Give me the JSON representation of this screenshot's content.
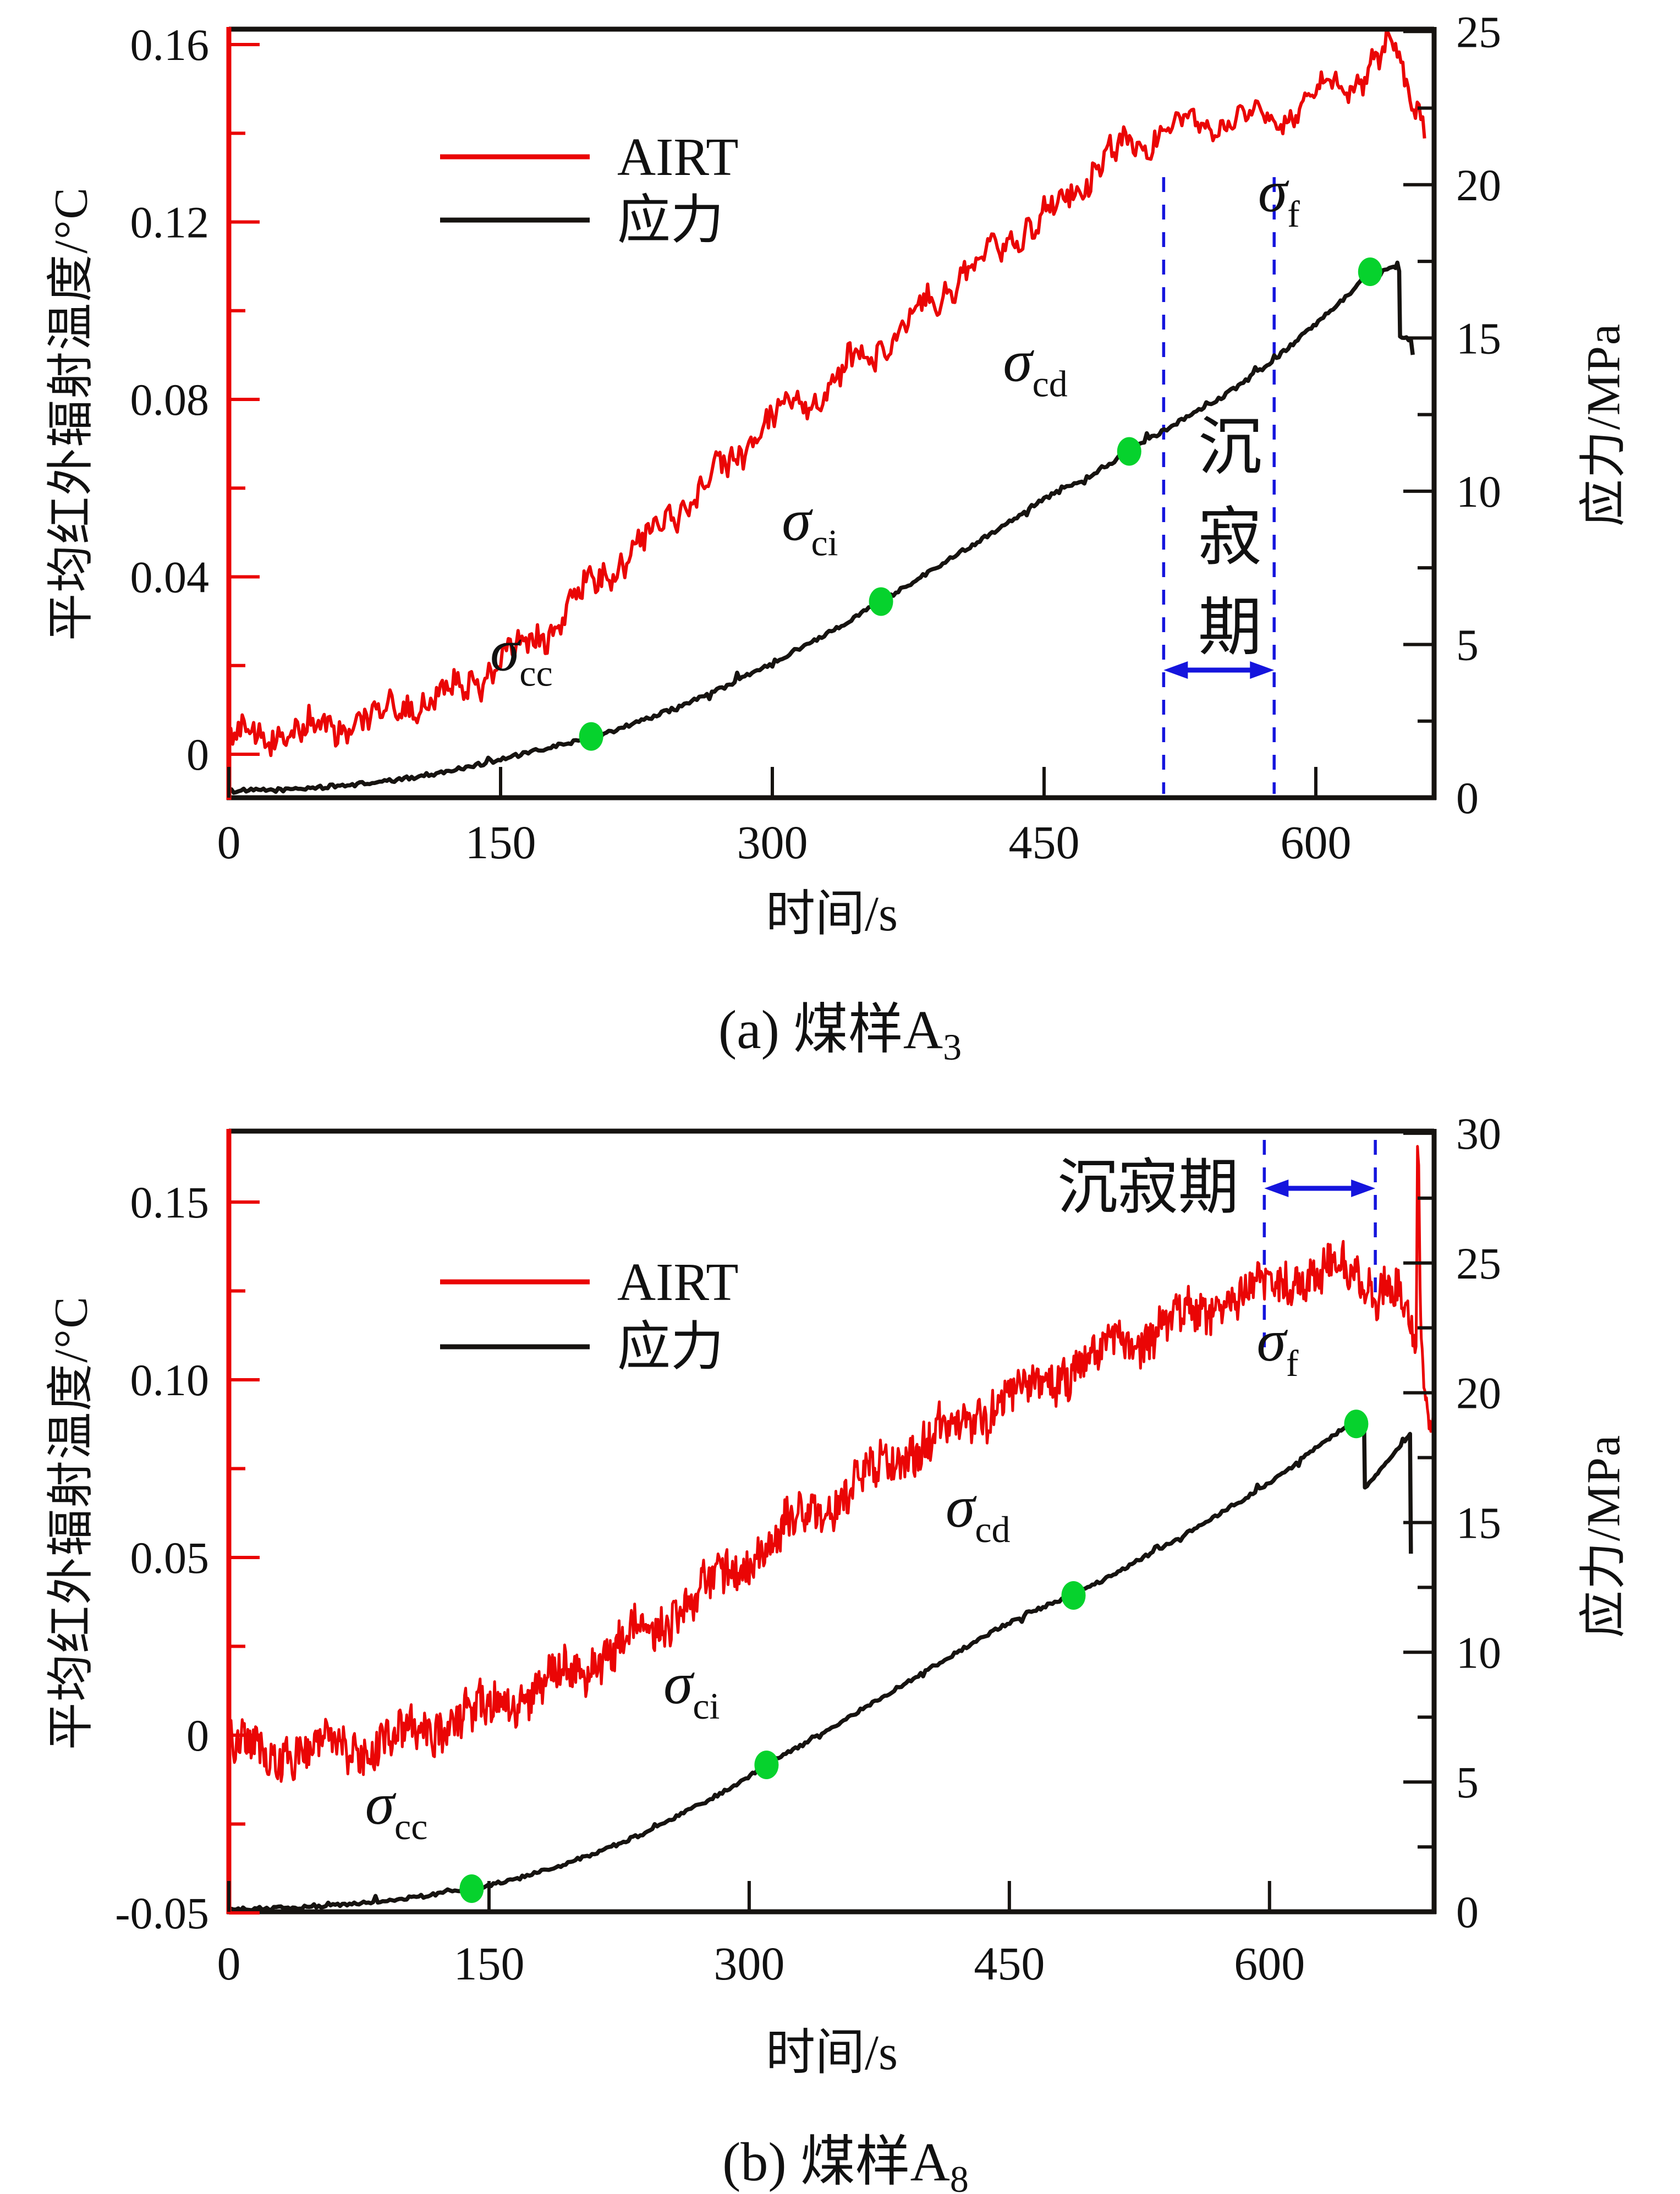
{
  "figure": {
    "background": "#ffffff"
  },
  "colors": {
    "airt": "#ea0505",
    "stress": "#161310",
    "marker_green": "#06d22d",
    "quiet_blue": "#1515dd",
    "text": "#111111",
    "left_axis": "#ea0505"
  },
  "legend": {
    "airt_label": "AIRT",
    "stress_label": "应力"
  },
  "quiet_label": "沉寂期",
  "captions": {
    "a": {
      "text": "(a) 煤样A",
      "sub": "3"
    },
    "b": {
      "text": "(b) 煤样A",
      "sub": "8"
    }
  },
  "chart_data": [
    {
      "id": "a",
      "type": "line",
      "title": "(a) 煤样A3",
      "x": {
        "label": "时间/s",
        "ticks": [
          0,
          150,
          300,
          450,
          600
        ],
        "min": 0,
        "max": 665
      },
      "y_left": {
        "label": "平均红外辐射温度/°C",
        "ticks": [
          0,
          0.04,
          0.08,
          0.12,
          0.16
        ],
        "minor_ticks": [
          0.02,
          0.06,
          0.1,
          0.14
        ],
        "min": -0.01,
        "max": 0.163
      },
      "y_right": {
        "label": "应力/MPa",
        "ticks": [
          0,
          5,
          10,
          15,
          20,
          25
        ],
        "minor_ticks": [
          2.5,
          7.5,
          12.5,
          17.5,
          22.5
        ],
        "min": 0,
        "max": 25
      },
      "grid": false,
      "legend_position": "upper-left-inside",
      "series": [
        {
          "name": "AIRT",
          "axis": "left",
          "color": "#ea0505",
          "points": [
            [
              0,
              0.004
            ],
            [
              20,
              0.0045
            ],
            [
              40,
              0.005
            ],
            [
              60,
              0.006
            ],
            [
              75,
              0.008
            ],
            [
              90,
              0.01
            ],
            [
              105,
              0.012
            ],
            [
              120,
              0.014
            ],
            [
              135,
              0.017
            ],
            [
              150,
              0.02
            ],
            [
              165,
              0.025
            ],
            [
              180,
              0.03
            ],
            [
              195,
              0.036
            ],
            [
              210,
              0.041
            ],
            [
              225,
              0.046
            ],
            [
              240,
              0.052
            ],
            [
              255,
              0.058
            ],
            [
              270,
              0.063
            ],
            [
              285,
              0.07
            ],
            [
              300,
              0.075
            ],
            [
              315,
              0.078
            ],
            [
              330,
              0.082
            ],
            [
              345,
              0.088
            ],
            [
              360,
              0.092
            ],
            [
              375,
              0.097
            ],
            [
              390,
              0.103
            ],
            [
              405,
              0.108
            ],
            [
              420,
              0.113
            ],
            [
              435,
              0.117
            ],
            [
              450,
              0.121
            ],
            [
              465,
              0.127
            ],
            [
              480,
              0.132
            ],
            [
              495,
              0.137
            ],
            [
              510,
              0.14
            ],
            [
              525,
              0.1415
            ],
            [
              540,
              0.1425
            ],
            [
              555,
              0.143
            ],
            [
              570,
              0.1435
            ],
            [
              585,
              0.1445
            ],
            [
              595,
              0.146
            ],
            [
              605,
              0.149
            ],
            [
              615,
              0.151
            ],
            [
              625,
              0.153
            ],
            [
              635,
              0.156
            ],
            [
              643,
              0.1595
            ],
            [
              646,
              0.1575
            ],
            [
              649,
              0.152
            ],
            [
              652,
              0.149
            ],
            [
              655,
              0.146
            ],
            [
              658,
              0.1455
            ],
            [
              660,
              0.144
            ]
          ]
        },
        {
          "name": "应力",
          "axis": "right",
          "color": "#161310",
          "points": [
            [
              0,
              0.22
            ],
            [
              30,
              0.26
            ],
            [
              60,
              0.38
            ],
            [
              90,
              0.55
            ],
            [
              120,
              0.85
            ],
            [
              150,
              1.25
            ],
            [
              175,
              1.6
            ],
            [
              200,
              1.97
            ],
            [
              225,
              2.45
            ],
            [
              250,
              3.0
            ],
            [
              275,
              3.65
            ],
            [
              300,
              4.4
            ],
            [
              330,
              5.35
            ],
            [
              360,
              6.4
            ],
            [
              390,
              7.5
            ],
            [
              420,
              8.6
            ],
            [
              450,
              9.75
            ],
            [
              475,
              10.5
            ],
            [
              497,
              11.31
            ],
            [
              515,
              11.95
            ],
            [
              530,
              12.45
            ],
            [
              545,
              12.95
            ],
            [
              560,
              13.55
            ],
            [
              577,
              14.3
            ],
            [
              590,
              14.95
            ],
            [
              600,
              15.45
            ],
            [
              615,
              16.25
            ],
            [
              630,
              17.16
            ],
            [
              637,
              17.25
            ],
            [
              643,
              17.3
            ],
            [
              646,
              17.2
            ],
            [
              646.5,
              15.05
            ],
            [
              650,
              15.0
            ],
            [
              652.5,
              14.9
            ],
            [
              653.5,
              14.45
            ]
          ]
        }
      ],
      "markers": [
        {
          "label": "σ",
          "sub": "cc",
          "t": 200,
          "value": 2.0
        },
        {
          "label": "σ",
          "sub": "ci",
          "t": 360,
          "value": 6.4
        },
        {
          "label": "σ",
          "sub": "cd",
          "t": 497,
          "value": 11.3
        },
        {
          "label": "σ",
          "sub": "f",
          "t": 630,
          "value": 17.16
        }
      ],
      "quiet_period": {
        "t1": 516,
        "t2": 577,
        "text_orientation": "vertical"
      }
    },
    {
      "id": "b",
      "type": "line",
      "title": "(b) 煤样A8",
      "x": {
        "label": "时间/s",
        "ticks": [
          0,
          150,
          300,
          450,
          600
        ],
        "min": 0,
        "max": 695
      },
      "y_left": {
        "label": "平均红外辐射温度/°C",
        "ticks": [
          -0.05,
          0,
          0.05,
          0.1,
          0.15
        ],
        "minor_ticks": [
          -0.025,
          0.025,
          0.075,
          0.125
        ],
        "min": -0.05,
        "max": 0.169
      },
      "y_right": {
        "label": "应力/MPa",
        "ticks": [
          0,
          5,
          10,
          15,
          20,
          25,
          30
        ],
        "minor_ticks": [
          2.5,
          7.5,
          12.5,
          17.5,
          22.5,
          27.5
        ],
        "min": 0,
        "max": 30
      },
      "grid": false,
      "legend_position": "upper-left-inside",
      "series": [
        {
          "name": "AIRT",
          "axis": "left",
          "color": "#ea0505",
          "points": [
            [
              0,
              -0.004
            ],
            [
              25,
              -0.005
            ],
            [
              50,
              -0.004
            ],
            [
              75,
              -0.003
            ],
            [
              100,
              -0.001
            ],
            [
              125,
              0.003
            ],
            [
              150,
              0.007
            ],
            [
              175,
              0.012
            ],
            [
              200,
              0.018
            ],
            [
              225,
              0.025
            ],
            [
              250,
              0.032
            ],
            [
              275,
              0.041
            ],
            [
              300,
              0.05
            ],
            [
              325,
              0.059
            ],
            [
              350,
              0.067
            ],
            [
              375,
              0.075
            ],
            [
              400,
              0.082
            ],
            [
              425,
              0.089
            ],
            [
              450,
              0.095
            ],
            [
              475,
              0.101
            ],
            [
              500,
              0.107
            ],
            [
              525,
              0.112
            ],
            [
              550,
              0.117
            ],
            [
              570,
              0.121
            ],
            [
              590,
              0.125
            ],
            [
              610,
              0.128
            ],
            [
              630,
              0.13
            ],
            [
              645,
              0.1305
            ],
            [
              655,
              0.128
            ],
            [
              663,
              0.1255
            ],
            [
              668,
              0.129
            ],
            [
              673,
              0.1245
            ],
            [
              678,
              0.122
            ],
            [
              682,
              0.112
            ],
            [
              684.5,
              0.106
            ],
            [
              685.3,
              0.1625
            ],
            [
              686,
              0.16
            ],
            [
              686.8,
              0.125
            ],
            [
              687.5,
              0.107
            ],
            [
              689,
              0.096
            ],
            [
              691,
              0.089
            ],
            [
              693,
              0.0875
            ],
            [
              695,
              0.09
            ]
          ]
        },
        {
          "name": "应力",
          "axis": "right",
          "color": "#161310",
          "points": [
            [
              0,
              0.1
            ],
            [
              30,
              0.14
            ],
            [
              60,
              0.24
            ],
            [
              90,
              0.42
            ],
            [
              115,
              0.63
            ],
            [
              140,
              0.89
            ],
            [
              165,
              1.25
            ],
            [
              190,
              1.75
            ],
            [
              215,
              2.35
            ],
            [
              240,
              3.05
            ],
            [
              265,
              3.9
            ],
            [
              290,
              4.8
            ],
            [
              310,
              5.66
            ],
            [
              335,
              6.6
            ],
            [
              360,
              7.6
            ],
            [
              385,
              8.6
            ],
            [
              410,
              9.6
            ],
            [
              435,
              10.6
            ],
            [
              460,
              11.5
            ],
            [
              487,
              12.19
            ],
            [
              510,
              13.0
            ],
            [
              530,
              13.75
            ],
            [
              550,
              14.5
            ],
            [
              570,
              15.3
            ],
            [
              585,
              15.9
            ],
            [
              597,
              16.4
            ],
            [
              610,
              17.0
            ],
            [
              625,
              17.8
            ],
            [
              640,
              18.5
            ],
            [
              650,
              18.8
            ],
            [
              653,
              18.95
            ],
            [
              654.5,
              19.0
            ],
            [
              655,
              16.35
            ],
            [
              660,
              16.7
            ],
            [
              666,
              17.2
            ],
            [
              672,
              17.7
            ],
            [
              678,
              18.15
            ],
            [
              681,
              18.4
            ],
            [
              681.5,
              13.8
            ]
          ]
        }
      ],
      "markers": [
        {
          "label": "σ",
          "sub": "cc",
          "t": 140,
          "value": 0.89
        },
        {
          "label": "σ",
          "sub": "ci",
          "t": 310,
          "value": 5.66
        },
        {
          "label": "σ",
          "sub": "cd",
          "t": 487,
          "value": 12.19
        },
        {
          "label": "σ",
          "sub": "f",
          "t": 650,
          "value": 18.8
        }
      ],
      "quiet_period": {
        "t1": 597,
        "t2": 661,
        "text_orientation": "horizontal"
      }
    }
  ]
}
